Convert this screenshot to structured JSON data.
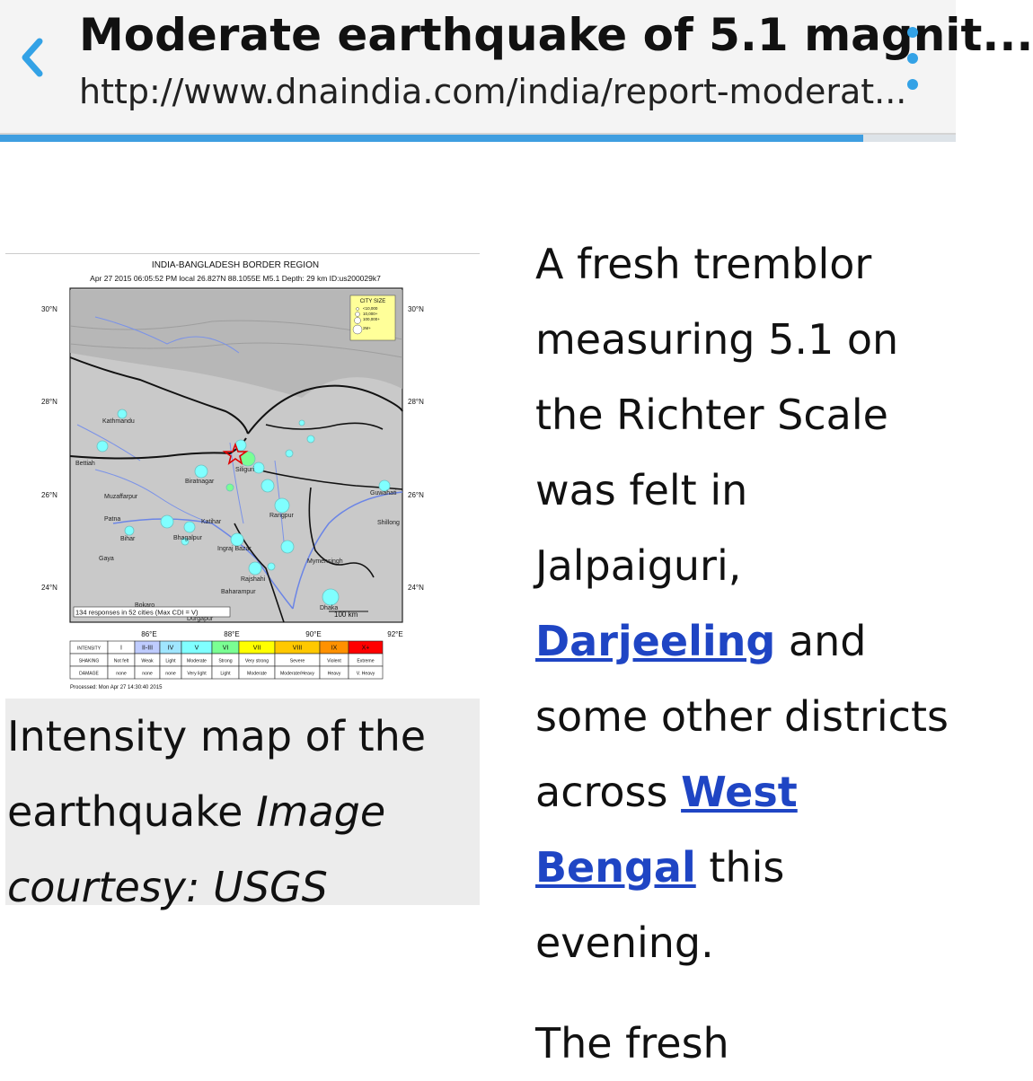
{
  "header": {
    "title": "Moderate earthquake of 5.1 magnit...",
    "url": "http://www.dnaindia.com/india/report-moderat...",
    "back_label": "‹",
    "progress_fraction": 0.903,
    "accent": "#33a2e6"
  },
  "figure": {
    "map": {
      "title": "INDIA-BANGLADESH BORDER REGION",
      "subtitle": "Apr 27 2015 06:05:52 PM local 26.827N 88.1055E M5.1  Depth: 29 km  ID:us200029k7",
      "lat_labels": [
        "30°N",
        "28°N",
        "26°N",
        "24°N"
      ],
      "lon_labels": [
        "86°E",
        "88°E",
        "90°E",
        "92°E"
      ],
      "city_labels": [
        "Kathmandu",
        "Bettiah",
        "Muzaffarpur",
        "Patna",
        "Bihar",
        "Gaya",
        "Biratnagar",
        "Siliguri",
        "Katihar",
        "Bhagalpur",
        "Ingraj Bazar",
        "Rangpur",
        "Rajshahi",
        "Baharampur",
        "Mymensingh",
        "Guwahati",
        "Shillong",
        "Bokaro",
        "Durgapur",
        "Dhaka"
      ],
      "city_size_legend": {
        "title": "CITY SIZE",
        "items": [
          "<10,000",
          "10,000+",
          "100,000+",
          "2M+"
        ]
      },
      "responses_note": "134 responses in 52 cities (Max CDI = V)",
      "scale_label": "100 km",
      "intensity_table": {
        "rows": [
          {
            "label": "INTENSITY",
            "cells": [
              "I",
              "II-III",
              "IV",
              "V",
              "VI",
              "VII",
              "VIII",
              "IX",
              "X+"
            ]
          },
          {
            "label": "SHAKING",
            "cells": [
              "Not felt",
              "Weak",
              "Light",
              "Moderate",
              "Strong",
              "Very strong",
              "Severe",
              "Violent",
              "Extreme"
            ]
          },
          {
            "label": "DAMAGE",
            "cells": [
              "none",
              "none",
              "none",
              "Very light",
              "Light",
              "Moderate",
              "Moderate/Heavy",
              "Heavy",
              "V. Heavy"
            ]
          }
        ],
        "colors": [
          "#ffffff",
          "#bfccff",
          "#a0e6ff",
          "#80ffff",
          "#7aff93",
          "#ffff00",
          "#ffc800",
          "#ff9100",
          "#ff0000"
        ]
      },
      "processed": "Processed: Mon Apr 27 14:30:40 2015"
    },
    "caption_text": "Intensity map of the earthquake ",
    "caption_italic": "Image courtesy: USGS"
  },
  "article": {
    "text_1": "A fresh tremblor measuring 5.1 on the Richter Scale was felt in Jalpaiguri, ",
    "link_1": "Darjeeling",
    "text_2": " and some other districts across ",
    "link_2": "West Bengal",
    "text_3": " this evening.",
    "para2_partial": "The fresh"
  }
}
